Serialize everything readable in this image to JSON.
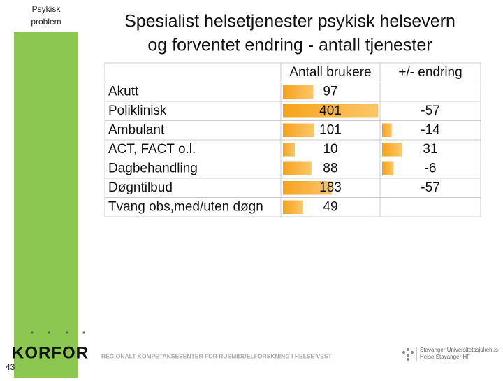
{
  "sidebar": {
    "label": [
      "Psykisk",
      "problem"
    ]
  },
  "title": [
    "Spesialist helsetjenester psykisk helsevern",
    "og forventet endring - antall tjenester"
  ],
  "table": {
    "header": [
      "Antall brukere",
      "+/- endring"
    ],
    "rows": [
      {
        "label": "Akutt",
        "users": 97,
        "change": null
      },
      {
        "label": "Poliklinisk",
        "users": 401,
        "change": -57
      },
      {
        "label": "Ambulant",
        "users": 101,
        "change": -14
      },
      {
        "label": "ACT, FACT o.l.",
        "users": 10,
        "change": 31
      },
      {
        "label": "Dagbehandling",
        "users": 88,
        "change": -6
      },
      {
        "label": "Døgntilbud",
        "users": 183,
        "change": -57
      },
      {
        "label": "Tvang obs,med/uten døgn",
        "users": 49,
        "change": null
      }
    ]
  },
  "footer": {
    "page": "43",
    "logo": "KORFOR",
    "center": "REGIONALT KOMPETANSESENTER FOR RUSMIDDELFORSKNING I HELSE VEST",
    "right": [
      "Stavanger Universitetssjukehus",
      "Helse Stavanger HF"
    ]
  }
}
